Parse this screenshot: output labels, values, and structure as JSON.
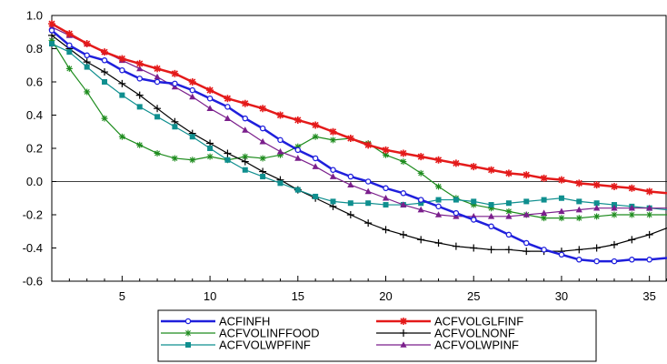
{
  "chart_data": {
    "type": "line",
    "title": "",
    "xlabel": "",
    "ylabel": "",
    "xlim": [
      1,
      36
    ],
    "ylim": [
      -0.6,
      1.0
    ],
    "x_ticks": [
      5,
      10,
      15,
      20,
      25,
      30,
      35
    ],
    "x_tick_labels": [
      "5",
      "10",
      "15",
      "20",
      "25",
      "30",
      "35"
    ],
    "y_ticks": [
      -0.6,
      -0.4,
      -0.2,
      0.0,
      0.2,
      0.4,
      0.6,
      0.8,
      1.0
    ],
    "y_tick_labels": [
      "-0.6",
      "-0.4",
      "-0.2",
      "0.0",
      "0.2",
      "0.4",
      "0.6",
      "0.8",
      "1.0"
    ],
    "grid": false,
    "legend_position": "bottom",
    "x": [
      1,
      2,
      3,
      4,
      5,
      6,
      7,
      8,
      9,
      10,
      11,
      12,
      13,
      14,
      15,
      16,
      17,
      18,
      19,
      20,
      21,
      22,
      23,
      24,
      25,
      26,
      27,
      28,
      29,
      30,
      31,
      32,
      33,
      34,
      35,
      36
    ],
    "series": [
      {
        "name": "ACFINFH",
        "color": "#1f1fdc",
        "marker": "circle",
        "width": 2.5,
        "values": [
          0.91,
          0.82,
          0.76,
          0.73,
          0.67,
          0.62,
          0.6,
          0.59,
          0.55,
          0.5,
          0.45,
          0.38,
          0.32,
          0.25,
          0.19,
          0.14,
          0.07,
          0.03,
          0.0,
          -0.04,
          -0.07,
          -0.11,
          -0.15,
          -0.19,
          -0.23,
          -0.27,
          -0.32,
          -0.37,
          -0.41,
          -0.44,
          -0.47,
          -0.48,
          -0.48,
          -0.47,
          -0.47,
          -0.46
        ]
      },
      {
        "name": "ACFVOLGLFINF",
        "color": "#e41a1a",
        "marker": "star",
        "width": 2.5,
        "values": [
          0.95,
          0.89,
          0.83,
          0.78,
          0.74,
          0.71,
          0.68,
          0.65,
          0.6,
          0.55,
          0.5,
          0.47,
          0.44,
          0.4,
          0.37,
          0.34,
          0.3,
          0.26,
          0.22,
          0.19,
          0.17,
          0.15,
          0.13,
          0.11,
          0.09,
          0.07,
          0.05,
          0.04,
          0.02,
          0.01,
          -0.01,
          -0.02,
          -0.03,
          -0.04,
          -0.06,
          -0.07
        ]
      },
      {
        "name": "ACFVOLINFFOOD",
        "color": "#1e8c1e",
        "marker": "asterisk",
        "width": 1.2,
        "values": [
          0.85,
          0.68,
          0.54,
          0.38,
          0.27,
          0.22,
          0.17,
          0.14,
          0.13,
          0.15,
          0.13,
          0.15,
          0.14,
          0.16,
          0.21,
          0.27,
          0.25,
          0.26,
          0.23,
          0.16,
          0.12,
          0.05,
          -0.03,
          -0.1,
          -0.14,
          -0.16,
          -0.18,
          -0.2,
          -0.22,
          -0.22,
          -0.22,
          -0.21,
          -0.2,
          -0.2,
          -0.2,
          -0.2
        ]
      },
      {
        "name": "ACFVOLNONF",
        "color": "#000000",
        "marker": "plus",
        "width": 1.2,
        "values": [
          0.88,
          0.8,
          0.72,
          0.66,
          0.59,
          0.52,
          0.44,
          0.36,
          0.29,
          0.23,
          0.17,
          0.12,
          0.06,
          0.01,
          -0.05,
          -0.1,
          -0.15,
          -0.2,
          -0.25,
          -0.29,
          -0.32,
          -0.35,
          -0.37,
          -0.39,
          -0.4,
          -0.41,
          -0.41,
          -0.42,
          -0.42,
          -0.42,
          -0.41,
          -0.4,
          -0.38,
          -0.35,
          -0.32,
          -0.28
        ]
      },
      {
        "name": "ACFVOLWPFINF",
        "color": "#0f8f8f",
        "marker": "square",
        "width": 1.2,
        "values": [
          0.83,
          0.78,
          0.69,
          0.6,
          0.52,
          0.45,
          0.39,
          0.33,
          0.27,
          0.2,
          0.13,
          0.07,
          0.03,
          -0.01,
          -0.05,
          -0.09,
          -0.12,
          -0.13,
          -0.13,
          -0.14,
          -0.14,
          -0.13,
          -0.11,
          -0.11,
          -0.12,
          -0.14,
          -0.13,
          -0.12,
          -0.11,
          -0.1,
          -0.12,
          -0.13,
          -0.14,
          -0.15,
          -0.16,
          -0.17
        ]
      },
      {
        "name": "ACFVOLWPINF",
        "color": "#7b1f8c",
        "marker": "triangle",
        "width": 1.2,
        "values": [
          0.93,
          0.88,
          0.83,
          0.78,
          0.73,
          0.68,
          0.63,
          0.57,
          0.51,
          0.44,
          0.38,
          0.31,
          0.24,
          0.18,
          0.14,
          0.09,
          0.03,
          -0.02,
          -0.06,
          -0.1,
          -0.14,
          -0.17,
          -0.2,
          -0.21,
          -0.21,
          -0.21,
          -0.21,
          -0.2,
          -0.19,
          -0.18,
          -0.17,
          -0.16,
          -0.16,
          -0.16,
          -0.16,
          -0.16
        ]
      }
    ]
  }
}
